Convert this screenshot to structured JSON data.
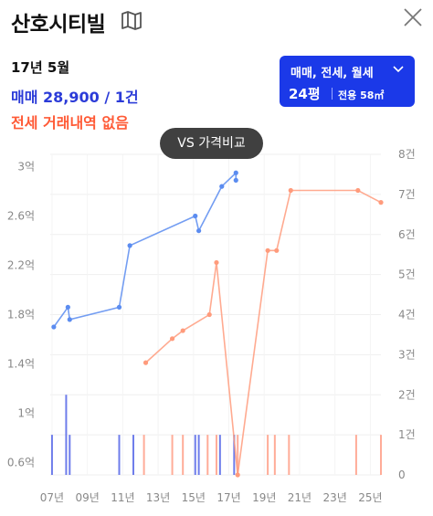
{
  "header": {
    "title": "산호시티빌",
    "map_icon": "map-icon",
    "close_icon": "close-icon"
  },
  "summary": {
    "date": "17년 5월",
    "sale": "매매 28,900 / 1건",
    "lease": "전세 거래내역 없음"
  },
  "filter": {
    "types": "매매, 전세, 월세",
    "size": "24평",
    "area": "전용 58㎡"
  },
  "compare_label": "VS 가격비교",
  "colors": {
    "sale": "#5b8cf0",
    "sale_volume": "#5566e8",
    "lease": "#ff9b7c",
    "lease_volume": "#ff9d86",
    "accent": "#1b39e8"
  },
  "chart_data": {
    "type": "line",
    "x_ticks": [
      "07년",
      "09년",
      "11년",
      "13년",
      "15년",
      "17년",
      "19년",
      "21년",
      "23년",
      "25년"
    ],
    "x_range": [
      2006.9,
      2025.6
    ],
    "left_axis": {
      "ticks": [
        "3억",
        "2.6억",
        "2.2억",
        "1.8억",
        "1.4억",
        "1억",
        "0.6억"
      ],
      "tick_values": [
        3.0,
        2.6,
        2.2,
        1.8,
        1.4,
        1.0,
        0.6
      ],
      "range": [
        0.5,
        3.1
      ]
    },
    "right_axis": {
      "ticks": [
        "8건",
        "7건",
        "6건",
        "5건",
        "4건",
        "3건",
        "2건",
        "1건",
        "0"
      ],
      "tick_values": [
        8,
        7,
        6,
        5,
        4,
        3,
        2,
        1,
        0
      ],
      "range": [
        0,
        8
      ]
    },
    "grid": true,
    "series": [
      {
        "axis": "left",
        "x": [
          2007.1,
          2007.9,
          2008.0,
          2010.8,
          2011.4,
          2015.1,
          2015.3,
          2016.6,
          2017.4,
          2017.4
        ],
        "y": [
          1.7,
          1.86,
          1.76,
          1.86,
          2.36,
          2.6,
          2.48,
          2.84,
          2.95,
          2.89
        ]
      },
      {
        "axis": "right",
        "x": [
          2012.3,
          2013.8,
          2014.4,
          2015.9,
          2016.3,
          2017.5,
          2019.2,
          2019.7,
          2020.5,
          2024.3,
          2025.6
        ],
        "y": [
          2.8,
          3.4,
          3.6,
          4.0,
          5.3,
          0,
          5.6,
          5.6,
          7.1,
          7.1,
          6.8
        ]
      }
    ],
    "volume_series": [
      {
        "axis": "right",
        "x": [
          2007.0,
          2007.8,
          2008.0,
          2010.8,
          2011.6,
          2015.1,
          2015.3,
          2016.5,
          2017.3
        ],
        "y": [
          1,
          2,
          1,
          1,
          1,
          1,
          1,
          1,
          1
        ]
      },
      {
        "axis": "right",
        "x": [
          2012.2,
          2013.8,
          2014.4,
          2015.8,
          2016.3,
          2017.5,
          2019.2,
          2019.6,
          2020.4,
          2024.2,
          2025.6
        ],
        "y": [
          1,
          1,
          1,
          1,
          1,
          1,
          1,
          1,
          1,
          1,
          1
        ]
      }
    ]
  }
}
